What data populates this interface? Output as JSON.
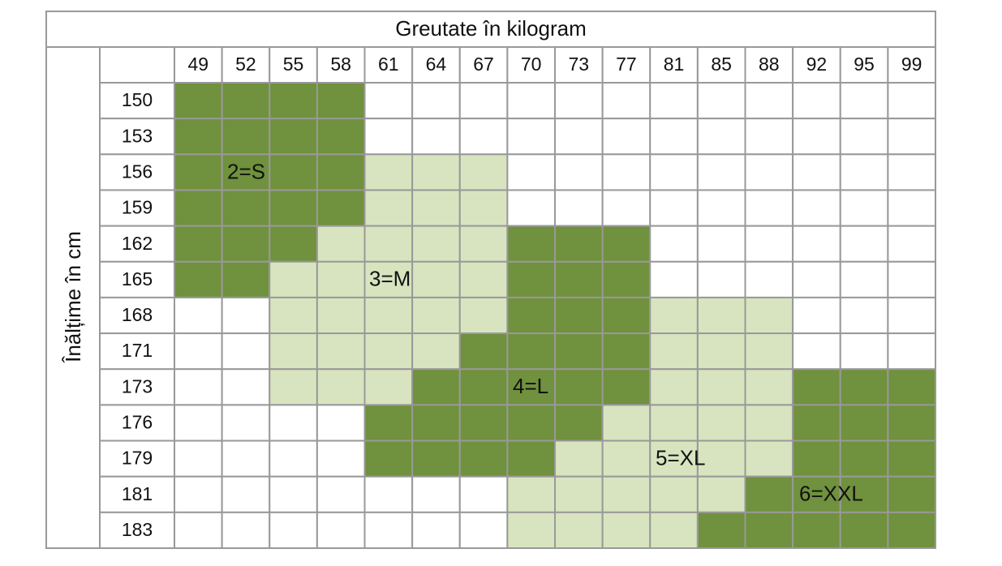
{
  "table": {
    "title": "Greutate în kilogram",
    "row_axis_label": "Înălțime în cm",
    "columns": [
      "49",
      "52",
      "55",
      "58",
      "61",
      "64",
      "67",
      "70",
      "73",
      "77",
      "81",
      "85",
      "88",
      "92",
      "95",
      "99"
    ],
    "rows": [
      "150",
      "153",
      "156",
      "159",
      "162",
      "165",
      "168",
      "171",
      "173",
      "176",
      "179",
      "181",
      "183"
    ],
    "size_labels": [
      "2=S",
      "3=M",
      "4=L",
      "5=XL",
      "6=XXL"
    ],
    "cell_colors": [
      [
        "#70913d",
        "#70913d",
        "#70913d",
        "#70913d",
        "#ffffff",
        "#ffffff",
        "#ffffff",
        "#ffffff",
        "#ffffff",
        "#ffffff",
        "#ffffff",
        "#ffffff",
        "#ffffff",
        "#ffffff",
        "#ffffff",
        "#ffffff"
      ],
      [
        "#70913d",
        "#70913d",
        "#70913d",
        "#70913d",
        "#ffffff",
        "#ffffff",
        "#ffffff",
        "#ffffff",
        "#ffffff",
        "#ffffff",
        "#ffffff",
        "#ffffff",
        "#ffffff",
        "#ffffff",
        "#ffffff",
        "#ffffff"
      ],
      [
        "#70913d",
        "#70913d",
        "#70913d",
        "#70913d",
        "#d8e4bf",
        "#d8e4bf",
        "#d8e4bf",
        "#ffffff",
        "#ffffff",
        "#ffffff",
        "#ffffff",
        "#ffffff",
        "#ffffff",
        "#ffffff",
        "#ffffff",
        "#ffffff"
      ],
      [
        "#70913d",
        "#70913d",
        "#70913d",
        "#70913d",
        "#d8e4bf",
        "#d8e4bf",
        "#d8e4bf",
        "#ffffff",
        "#ffffff",
        "#ffffff",
        "#ffffff",
        "#ffffff",
        "#ffffff",
        "#ffffff",
        "#ffffff",
        "#ffffff"
      ],
      [
        "#70913d",
        "#70913d",
        "#70913d",
        "#d8e4bf",
        "#d8e4bf",
        "#d8e4bf",
        "#d8e4bf",
        "#70913d",
        "#70913d",
        "#70913d",
        "#ffffff",
        "#ffffff",
        "#ffffff",
        "#ffffff",
        "#ffffff",
        "#ffffff"
      ],
      [
        "#70913d",
        "#70913d",
        "#d8e4bf",
        "#d8e4bf",
        "#d8e4bf",
        "#d8e4bf",
        "#d8e4bf",
        "#70913d",
        "#70913d",
        "#70913d",
        "#ffffff",
        "#ffffff",
        "#ffffff",
        "#ffffff",
        "#ffffff",
        "#ffffff"
      ],
      [
        "#ffffff",
        "#ffffff",
        "#d8e4bf",
        "#d8e4bf",
        "#d8e4bf",
        "#d8e4bf",
        "#d8e4bf",
        "#70913d",
        "#70913d",
        "#70913d",
        "#d8e4bf",
        "#d8e4bf",
        "#d8e4bf",
        "#ffffff",
        "#ffffff",
        "#ffffff"
      ],
      [
        "#ffffff",
        "#ffffff",
        "#d8e4bf",
        "#d8e4bf",
        "#d8e4bf",
        "#d8e4bf",
        "#70913d",
        "#70913d",
        "#70913d",
        "#70913d",
        "#d8e4bf",
        "#d8e4bf",
        "#d8e4bf",
        "#ffffff",
        "#ffffff",
        "#ffffff"
      ],
      [
        "#ffffff",
        "#ffffff",
        "#d8e4bf",
        "#d8e4bf",
        "#d8e4bf",
        "#70913d",
        "#70913d",
        "#70913d",
        "#70913d",
        "#70913d",
        "#d8e4bf",
        "#d8e4bf",
        "#d8e4bf",
        "#70913d",
        "#70913d",
        "#70913d"
      ],
      [
        "#ffffff",
        "#ffffff",
        "#ffffff",
        "#ffffff",
        "#70913d",
        "#70913d",
        "#70913d",
        "#70913d",
        "#70913d",
        "#d8e4bf",
        "#d8e4bf",
        "#d8e4bf",
        "#d8e4bf",
        "#70913d",
        "#70913d",
        "#70913d"
      ],
      [
        "#ffffff",
        "#ffffff",
        "#ffffff",
        "#ffffff",
        "#70913d",
        "#70913d",
        "#70913d",
        "#70913d",
        "#d8e4bf",
        "#d8e4bf",
        "#d8e4bf",
        "#d8e4bf",
        "#d8e4bf",
        "#70913d",
        "#70913d",
        "#70913d"
      ],
      [
        "#ffffff",
        "#ffffff",
        "#ffffff",
        "#ffffff",
        "#ffffff",
        "#ffffff",
        "#ffffff",
        "#d8e4bf",
        "#d8e4bf",
        "#d8e4bf",
        "#d8e4bf",
        "#d8e4bf",
        "#70913d",
        "#70913d",
        "#70913d",
        "#70913d"
      ],
      [
        "#ffffff",
        "#ffffff",
        "#ffffff",
        "#ffffff",
        "#ffffff",
        "#ffffff",
        "#ffffff",
        "#d8e4bf",
        "#d8e4bf",
        "#d8e4bf",
        "#d8e4bf",
        "#70913d",
        "#70913d",
        "#70913d",
        "#70913d",
        "#70913d"
      ]
    ]
  }
}
